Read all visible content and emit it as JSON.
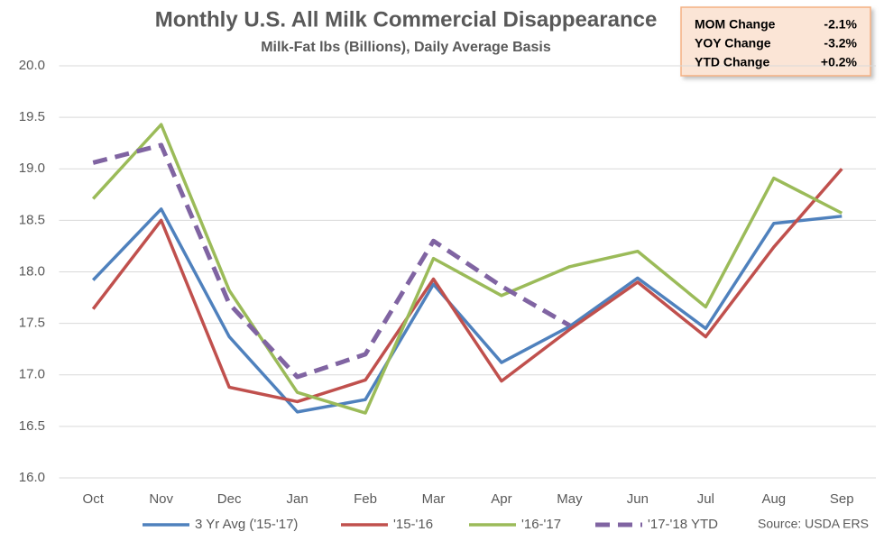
{
  "chart_data": {
    "type": "line",
    "title": "Monthly U.S. All Milk Commercial Disappearance",
    "subtitle": "Milk-Fat lbs (Billions), Daily Average Basis",
    "source": "Source: USDA ERS",
    "categories": [
      "Oct",
      "Nov",
      "Dec",
      "Jan",
      "Feb",
      "Mar",
      "Apr",
      "May",
      "Jun",
      "Jul",
      "Aug",
      "Sep"
    ],
    "series": [
      {
        "name": "3 Yr Avg ('15-'17)",
        "color": "#4f81bd",
        "style": "solid",
        "values": [
          17.92,
          18.61,
          17.37,
          16.64,
          16.76,
          17.88,
          17.12,
          17.47,
          17.94,
          17.45,
          18.47,
          18.54
        ]
      },
      {
        "name": "'15-'16",
        "color": "#c0504d",
        "style": "solid",
        "values": [
          17.64,
          18.5,
          16.88,
          16.74,
          16.95,
          17.93,
          16.94,
          17.44,
          17.9,
          17.37,
          18.24,
          19.0
        ]
      },
      {
        "name": "'16-'17",
        "color": "#9bbb59",
        "style": "solid",
        "values": [
          18.71,
          19.43,
          17.82,
          16.83,
          16.63,
          18.13,
          17.77,
          18.05,
          18.2,
          17.66,
          18.91,
          18.57
        ]
      },
      {
        "name": "'17-'18 YTD",
        "color": "#8064a2",
        "style": "dashed",
        "values": [
          19.06,
          19.23,
          17.69,
          16.98,
          17.2,
          18.3,
          17.86,
          17.48,
          null,
          null,
          null,
          null
        ]
      }
    ],
    "ylim": [
      16,
      20
    ],
    "yticks": [
      {
        "value": 16,
        "label": "16.0"
      },
      {
        "value": 16.5,
        "label": "16.5"
      },
      {
        "value": 17,
        "label": "17.0"
      },
      {
        "value": 17.5,
        "label": "17.5"
      },
      {
        "value": 18,
        "label": "18.0"
      },
      {
        "value": 18.5,
        "label": "18.5"
      },
      {
        "value": 19,
        "label": "19.0"
      },
      {
        "value": 19.5,
        "label": "19.5"
      },
      {
        "value": 20,
        "label": "20.0"
      }
    ],
    "grid": true,
    "legend": "bottom",
    "info_box": [
      {
        "label": "MOM Change",
        "value": "-2.1%"
      },
      {
        "label": "YOY Change",
        "value": "-3.2%"
      },
      {
        "label": "YTD Change",
        "value": "+0.2%"
      }
    ]
  }
}
